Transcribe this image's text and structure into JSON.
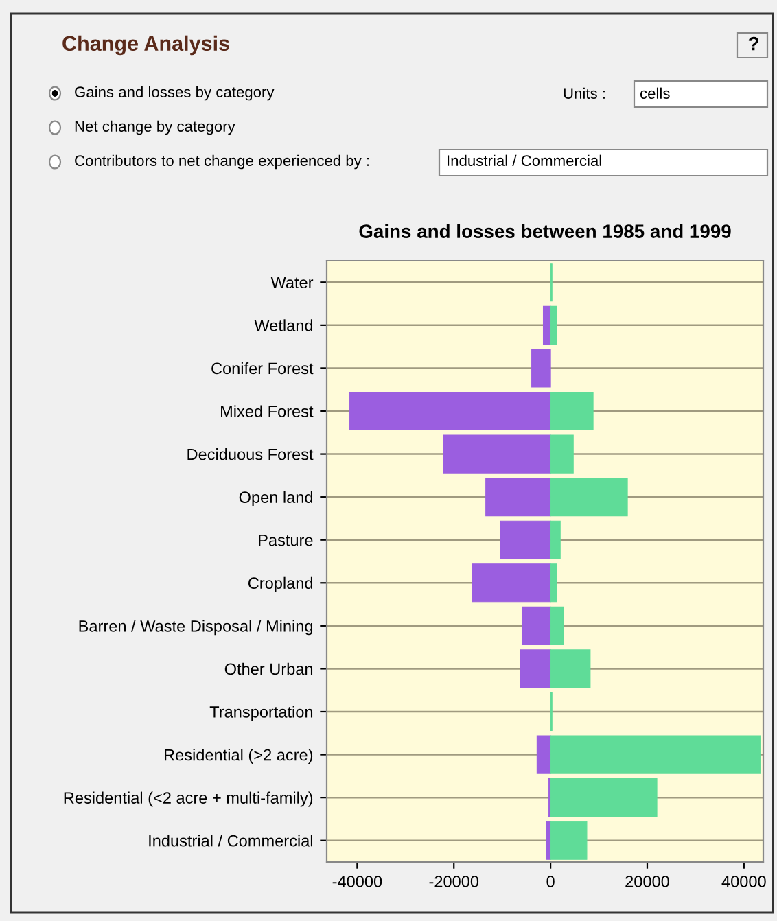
{
  "chart_data": {
    "type": "bar",
    "orientation": "horizontal",
    "title": "Gains and losses between 1985 and 1999",
    "categories": [
      "Water",
      "Wetland",
      "Conifer Forest",
      "Mixed Forest",
      "Deciduous Forest",
      "Open land",
      "Pasture",
      "Cropland",
      "Barren / Waste Disposal / Mining",
      "Other Urban",
      "Transportation",
      "Residential (>2 acre)",
      "Residential (<2 acre + multi-family)",
      "Industrial / Commercial"
    ],
    "series": [
      {
        "color": "#9b5ee0",
        "values": [
          null,
          -1500,
          -3900,
          -41600,
          -22100,
          -13400,
          -10300,
          -16200,
          -5900,
          -6300,
          null,
          -2800,
          -400,
          -800
        ]
      },
      {
        "color": "#5fdc98",
        "values": [
          300,
          1300,
          null,
          8800,
          4700,
          15900,
          2000,
          1300,
          2700,
          8200,
          300,
          43400,
          22000,
          7500
        ]
      }
    ],
    "stacked": true,
    "xlim": [
      -46300,
      44000
    ],
    "xticks": [
      -40000,
      -20000,
      0,
      20000,
      40000
    ],
    "grid": "y",
    "annotations": [
      "Change Analysis",
      "?",
      "Gains and losses by category",
      "Net change by category",
      "Contributors to net change experienced by :",
      "Units :",
      "cells",
      "Industrial / Commercial"
    ]
  }
}
